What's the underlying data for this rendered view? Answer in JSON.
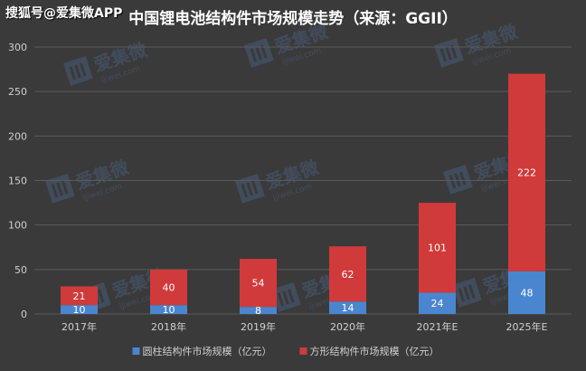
{
  "watermark_top_left": "搜狐号@爱集微APP",
  "watermark_text": "爱集微",
  "watermark_subtext": "ijiwei.com",
  "chart_data": {
    "type": "bar",
    "stacked": true,
    "title": "中国锂电池结构件市场规模走势（来源：GGII）",
    "xlabel": "",
    "ylabel": "",
    "categories": [
      "2017年",
      "2018年",
      "2019年",
      "2020年",
      "2021年E",
      "2025年E"
    ],
    "ylim": [
      0,
      300
    ],
    "yticks": [
      0,
      50,
      100,
      150,
      200,
      250,
      300
    ],
    "grid": true,
    "legend_position": "bottom",
    "series": [
      {
        "name": "圆柱结构件市场规模（亿元）",
        "values": [
          10,
          10,
          8,
          14,
          24,
          48
        ],
        "color": "#4a86cf"
      },
      {
        "name": "方形结构件市场规模（亿元）",
        "values": [
          21,
          40,
          54,
          62,
          101,
          222
        ],
        "color": "#d13a3a"
      }
    ]
  }
}
